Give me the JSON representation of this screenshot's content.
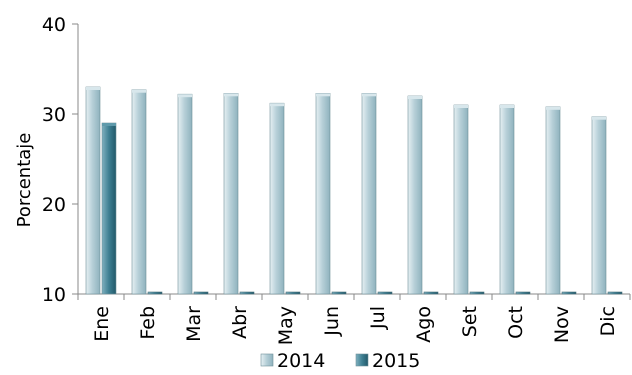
{
  "chart_data": {
    "type": "bar",
    "title": "",
    "xlabel": "",
    "ylabel": "Porcentaje",
    "ylim": [
      10,
      40
    ],
    "yticks": [
      10,
      20,
      30,
      40
    ],
    "grid": false,
    "legend_position": "bottom",
    "categories": [
      "Ene",
      "Feb",
      "Mar",
      "Abr",
      "May",
      "Jun",
      "Jul",
      "Ago",
      "Set",
      "Oct",
      "Nov",
      "Dic"
    ],
    "series": [
      {
        "name": "2014",
        "color": "#a9c7d1",
        "values": [
          33.0,
          32.7,
          32.2,
          32.3,
          31.2,
          32.3,
          32.3,
          32.0,
          31.0,
          31.0,
          30.8,
          29.7
        ]
      },
      {
        "name": "2015",
        "color": "#3e7f92",
        "values": [
          29.0,
          null,
          null,
          null,
          null,
          null,
          null,
          null,
          null,
          null,
          null,
          null
        ]
      }
    ]
  }
}
